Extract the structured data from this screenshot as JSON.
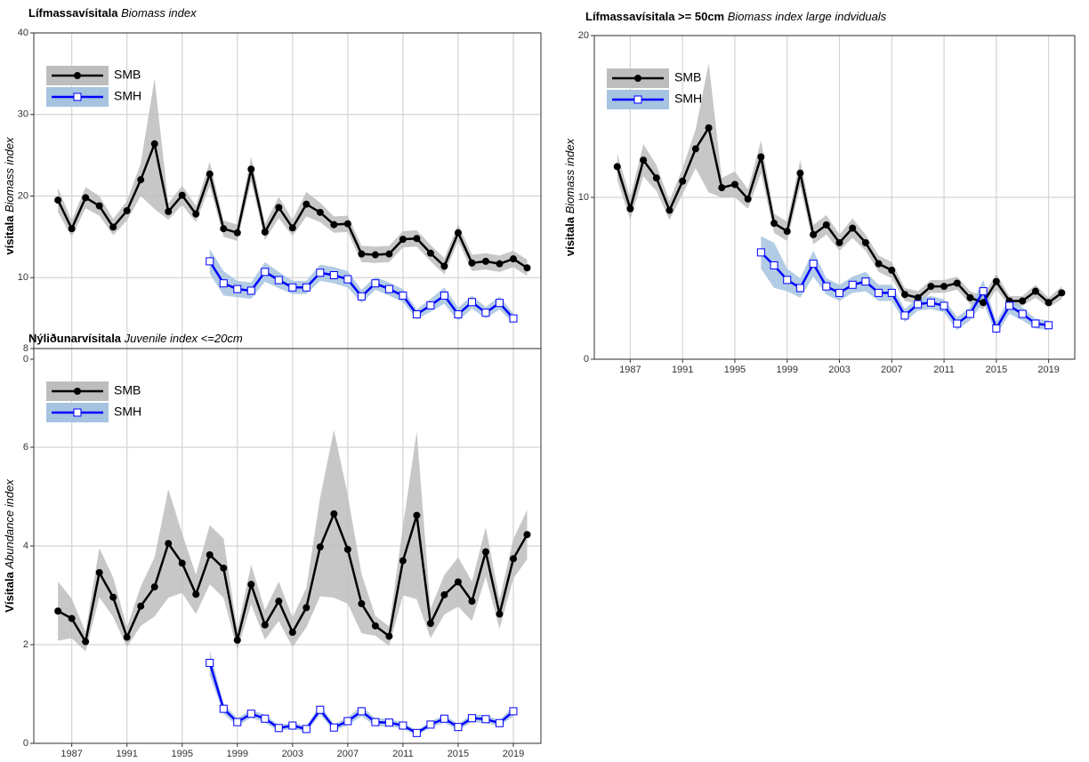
{
  "chart_data": [
    {
      "type": "line",
      "title": "Lífmassavísitala",
      "subtitle": "Biomass index",
      "ylabel": "vísitala",
      "ylabel_italic": "Biomass index",
      "xlim": [
        1984.25,
        2021
      ],
      "xticks": [
        1987,
        1991,
        1995,
        1999,
        2003,
        2007,
        2011,
        2015,
        2019
      ],
      "ylim": [
        0,
        40
      ],
      "yticks": [
        0,
        10,
        20,
        30,
        40
      ],
      "grid": true,
      "legend": "top-left",
      "series": [
        {
          "name": "SMB",
          "color": "#000000",
          "band_color": "#bdbdbd",
          "marker": "circle",
          "x": [
            1986,
            1987,
            1988,
            1989,
            1990,
            1991,
            1992,
            1993,
            1994,
            1995,
            1996,
            1997,
            1998,
            1999,
            2000,
            2001,
            2002,
            2003,
            2004,
            2005,
            2006,
            2007,
            2008,
            2009,
            2010,
            2011,
            2012,
            2013,
            2014,
            2015,
            2016,
            2017,
            2018,
            2019,
            2020
          ],
          "values": [
            19.5,
            16,
            19.8,
            18.8,
            16.2,
            18.2,
            22,
            26.4,
            18.1,
            20.1,
            17.8,
            22.7,
            16,
            15.5,
            23.3,
            15.6,
            18.6,
            16.1,
            19,
            18,
            16.5,
            16.6,
            12.9,
            12.8,
            12.9,
            14.7,
            14.8,
            13,
            11.4,
            15.5,
            11.8,
            12,
            11.7,
            12.3,
            11.2
          ],
          "err": [
            1.5,
            1,
            1.3,
            1.2,
            1,
            1.2,
            2,
            8,
            1,
            1.2,
            1,
            1.5,
            1,
            1,
            1.5,
            1,
            1.3,
            1,
            1.5,
            1.2,
            1,
            1,
            1,
            1,
            1,
            1,
            1,
            1,
            1,
            1,
            1,
            1,
            1,
            1,
            1
          ]
        },
        {
          "name": "SMH",
          "color": "#0000ff",
          "band_color": "#a6c3e0",
          "marker": "square",
          "x": [
            1997,
            1998,
            1999,
            2000,
            2001,
            2002,
            2003,
            2004,
            2005,
            2006,
            2007,
            2008,
            2009,
            2010,
            2011,
            2012,
            2013,
            2014,
            2015,
            2016,
            2017,
            2018,
            2019
          ],
          "values": [
            12,
            9.3,
            8.6,
            8.4,
            10.7,
            9.7,
            8.8,
            8.8,
            10.6,
            10.3,
            9.8,
            7.7,
            9.3,
            8.6,
            7.8,
            5.5,
            6.6,
            7.8,
            5.5,
            7,
            5.7,
            6.9,
            5
          ],
          "err": [
            1.5,
            1.5,
            1,
            1,
            1.2,
            1,
            0.8,
            0.8,
            1,
            1,
            1,
            0.8,
            0.8,
            0.8,
            0.8,
            0.6,
            0.8,
            1,
            0.8,
            0.8,
            0.7,
            0.8,
            0.6
          ]
        }
      ]
    },
    {
      "type": "line",
      "title": "Lífmassavísitala >= 50cm",
      "subtitle": "Biomass index large indviduals",
      "ylabel": "vísitala",
      "ylabel_italic": "Biomass index",
      "xlim": [
        1984.25,
        2021
      ],
      "xticks": [
        1987,
        1991,
        1995,
        1999,
        2003,
        2007,
        2011,
        2015,
        2019
      ],
      "ylim": [
        0,
        20
      ],
      "yticks": [
        0,
        10,
        20
      ],
      "grid": true,
      "legend": "top-left",
      "series": [
        {
          "name": "SMB",
          "color": "#000000",
          "band_color": "#bdbdbd",
          "marker": "circle",
          "x": [
            1986,
            1987,
            1988,
            1989,
            1990,
            1991,
            1992,
            1993,
            1994,
            1995,
            1996,
            1997,
            1998,
            1999,
            2000,
            2001,
            2002,
            2003,
            2004,
            2005,
            2006,
            2007,
            2008,
            2009,
            2010,
            2011,
            2012,
            2013,
            2014,
            2015,
            2016,
            2017,
            2018,
            2019,
            2020
          ],
          "values": [
            11.9,
            9.3,
            12.3,
            11.2,
            9.2,
            11,
            13,
            14.3,
            10.6,
            10.8,
            9.9,
            12.5,
            8.4,
            7.9,
            11.5,
            7.7,
            8.3,
            7.2,
            8.1,
            7.2,
            5.9,
            5.5,
            4,
            3.8,
            4.5,
            4.5,
            4.7,
            3.8,
            3.5,
            4.8,
            3.6,
            3.6,
            4.2,
            3.5,
            4.1
          ],
          "err": [
            0.8,
            0.7,
            1,
            0.8,
            0.6,
            0.8,
            1.2,
            4,
            0.6,
            0.8,
            0.6,
            1,
            0.6,
            0.6,
            0.8,
            0.6,
            0.6,
            0.5,
            0.6,
            0.5,
            0.5,
            0.5,
            0.4,
            0.4,
            0.4,
            0.4,
            0.4,
            0.4,
            0.4,
            0.5,
            0.3,
            0.3,
            0.4,
            0.3,
            0.4
          ]
        },
        {
          "name": "SMH",
          "color": "#0000ff",
          "band_color": "#a6c3e0",
          "marker": "square",
          "x": [
            1997,
            1998,
            1999,
            2000,
            2001,
            2002,
            2003,
            2004,
            2005,
            2006,
            2007,
            2008,
            2009,
            2010,
            2011,
            2012,
            2013,
            2014,
            2015,
            2016,
            2017,
            2018,
            2019
          ],
          "values": [
            6.6,
            5.8,
            4.9,
            4.4,
            5.9,
            4.5,
            4.1,
            4.6,
            4.8,
            4.1,
            4.1,
            2.7,
            3.4,
            3.5,
            3.3,
            2.2,
            2.8,
            4.2,
            1.9,
            3.3,
            2.8,
            2.2,
            2.1
          ],
          "err": [
            1,
            1.4,
            0.7,
            0.6,
            0.8,
            0.5,
            0.5,
            0.5,
            0.6,
            0.5,
            0.5,
            0.4,
            0.4,
            0.4,
            0.4,
            0.4,
            0.4,
            0.7,
            0.4,
            0.5,
            0.4,
            0.3,
            0.3
          ]
        }
      ]
    },
    {
      "type": "line",
      "title": "Nýliðunarvísitala",
      "subtitle": "Juvenile index <=20cm",
      "ylabel": "Vísitala",
      "ylabel_italic": "Abundance index",
      "xlim": [
        1984.25,
        2021
      ],
      "xticks": [
        1987,
        1991,
        1995,
        1999,
        2003,
        2007,
        2011,
        2015,
        2019
      ],
      "ylim": [
        0,
        8
      ],
      "yticks": [
        0,
        2,
        4,
        6,
        8
      ],
      "grid": true,
      "legend": "top-left",
      "series": [
        {
          "name": "SMB",
          "color": "#000000",
          "band_color": "#bdbdbd",
          "marker": "circle",
          "x": [
            1986,
            1987,
            1988,
            1989,
            1990,
            1991,
            1992,
            1993,
            1994,
            1995,
            1996,
            1997,
            1998,
            1999,
            2000,
            2001,
            2002,
            2003,
            2004,
            2005,
            2006,
            2007,
            2008,
            2009,
            2010,
            2011,
            2012,
            2013,
            2014,
            2015,
            2016,
            2017,
            2018,
            2019,
            2020
          ],
          "values": [
            2.68,
            2.53,
            2.06,
            3.46,
            2.96,
            2.15,
            2.78,
            3.17,
            4.05,
            3.65,
            3.02,
            3.82,
            3.55,
            2.09,
            3.22,
            2.4,
            2.88,
            2.25,
            2.75,
            3.98,
            4.65,
            3.93,
            2.83,
            2.38,
            2.17,
            3.7,
            4.62,
            2.43,
            3.01,
            3.27,
            2.88,
            3.88,
            2.62,
            3.74,
            4.23
          ],
          "err": [
            0.6,
            0.4,
            0.2,
            0.5,
            0.4,
            0.2,
            0.4,
            0.6,
            1.1,
            0.6,
            0.4,
            0.6,
            0.6,
            0.2,
            0.4,
            0.3,
            0.4,
            0.3,
            0.4,
            1,
            1.7,
            1.1,
            0.6,
            0.2,
            0.2,
            0.7,
            1.7,
            0.3,
            0.4,
            0.5,
            0.4,
            0.5,
            0.3,
            0.4,
            0.5
          ]
        },
        {
          "name": "SMH",
          "color": "#0000ff",
          "band_color": "#a6c3e0",
          "marker": "square",
          "x": [
            1997,
            1998,
            1999,
            2000,
            2001,
            2002,
            2003,
            2004,
            2005,
            2006,
            2007,
            2008,
            2009,
            2010,
            2011,
            2012,
            2013,
            2014,
            2015,
            2016,
            2017,
            2018,
            2019
          ],
          "values": [
            1.63,
            0.7,
            0.43,
            0.6,
            0.5,
            0.31,
            0.36,
            0.29,
            0.68,
            0.32,
            0.45,
            0.65,
            0.43,
            0.42,
            0.36,
            0.21,
            0.38,
            0.5,
            0.33,
            0.51,
            0.49,
            0.41,
            0.65
          ],
          "err": [
            0.25,
            0.1,
            0.08,
            0.08,
            0.08,
            0.06,
            0.06,
            0.06,
            0.1,
            0.06,
            0.08,
            0.1,
            0.08,
            0.08,
            0.06,
            0.05,
            0.06,
            0.08,
            0.06,
            0.08,
            0.08,
            0.06,
            0.1
          ]
        }
      ]
    }
  ]
}
